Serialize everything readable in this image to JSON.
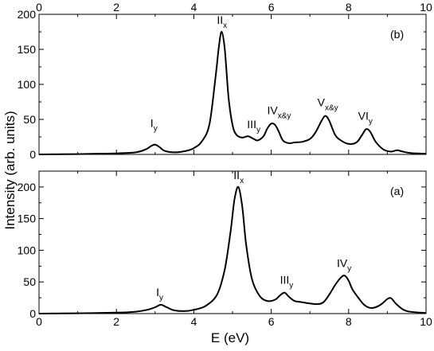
{
  "figure": {
    "xlabel": "E (eV)",
    "ylabel": "Intensity (arb. units)"
  },
  "chart_data": [
    {
      "type": "line",
      "panel_label": "(b)",
      "xlim": [
        0,
        10
      ],
      "ylim": [
        0,
        200
      ],
      "x_ticks": [
        0,
        2,
        4,
        6,
        8,
        10
      ],
      "x_tick_labels_top": [
        "0",
        "2",
        "4",
        "6",
        "8",
        "10"
      ],
      "y_ticks": [
        0,
        50,
        100,
        150,
        200
      ],
      "y_tick_labels": [
        "0",
        "50",
        "100",
        "150",
        "200"
      ],
      "grid": false,
      "series": [
        {
          "x": [
            0,
            1.0,
            2.0,
            2.5,
            2.75,
            2.9,
            3.0,
            3.1,
            3.25,
            3.5,
            3.8,
            4.0,
            4.2,
            4.4,
            4.55,
            4.65,
            4.72,
            4.8,
            4.9,
            5.0,
            5.1,
            5.25,
            5.4,
            5.55,
            5.65,
            5.8,
            5.9,
            6.0,
            6.1,
            6.2,
            6.3,
            6.45,
            6.6,
            6.8,
            7.0,
            7.15,
            7.3,
            7.4,
            7.5,
            7.65,
            7.8,
            8.0,
            8.2,
            8.35,
            8.45,
            8.55,
            8.7,
            8.9,
            9.1,
            9.25,
            9.4,
            9.6,
            10.0
          ],
          "y": [
            0,
            0.5,
            1.5,
            3,
            7,
            12,
            14,
            11,
            5,
            3,
            5,
            9,
            18,
            42,
            105,
            155,
            175,
            150,
            80,
            42,
            28,
            24,
            26,
            22,
            20,
            26,
            37,
            44,
            42,
            32,
            20,
            16,
            17,
            18,
            22,
            32,
            48,
            55,
            48,
            28,
            20,
            15,
            17,
            28,
            36,
            33,
            18,
            7,
            4,
            6,
            4,
            2,
            1
          ]
        }
      ],
      "annotations": [
        {
          "main": "I",
          "sub": "y",
          "x": 3.0,
          "y": 14
        },
        {
          "main": "II",
          "sub": "x",
          "x": 4.72,
          "y": 175
        },
        {
          "main": "III",
          "sub": "y",
          "x": 5.5,
          "y": 25
        },
        {
          "main": "IV",
          "sub": "x&y",
          "x": 6.1,
          "y": 44
        },
        {
          "main": "V",
          "sub": "x&y",
          "x": 7.4,
          "y": 55
        },
        {
          "main": "VI",
          "sub": "y",
          "x": 8.45,
          "y": 36
        }
      ]
    },
    {
      "type": "line",
      "panel_label": "(a)",
      "xlim": [
        0,
        10
      ],
      "ylim": [
        0,
        225
      ],
      "x_ticks": [
        0,
        2,
        4,
        6,
        8,
        10
      ],
      "x_tick_labels": [
        "0",
        "2",
        "4",
        "6",
        "8",
        "10"
      ],
      "y_ticks": [
        0,
        50,
        100,
        150,
        200
      ],
      "y_tick_labels": [
        "0",
        "50",
        "100",
        "150",
        "200"
      ],
      "grid": false,
      "series": [
        {
          "x": [
            0,
            1.0,
            2.0,
            2.5,
            2.8,
            3.0,
            3.15,
            3.3,
            3.5,
            3.8,
            4.0,
            4.3,
            4.6,
            4.8,
            4.95,
            5.05,
            5.15,
            5.25,
            5.35,
            5.5,
            5.7,
            5.9,
            6.1,
            6.25,
            6.35,
            6.45,
            6.6,
            6.8,
            7.0,
            7.2,
            7.35,
            7.5,
            7.65,
            7.8,
            7.9,
            8.0,
            8.1,
            8.25,
            8.4,
            8.55,
            8.7,
            8.85,
            9.0,
            9.1,
            9.25,
            9.5,
            10.0
          ],
          "y": [
            0,
            0.5,
            1.5,
            3,
            6,
            10,
            14,
            10,
            5,
            4,
            6,
            12,
            30,
            70,
            130,
            180,
            200,
            170,
            110,
            55,
            28,
            20,
            22,
            30,
            33,
            27,
            20,
            18,
            16,
            15,
            18,
            30,
            45,
            57,
            60,
            52,
            38,
            25,
            14,
            9,
            10,
            15,
            23,
            24,
            14,
            4,
            1
          ]
        }
      ],
      "annotations": [
        {
          "main": "I",
          "sub": "y",
          "x": 3.15,
          "y": 14
        },
        {
          "main": "II",
          "sub": "x",
          "x": 5.15,
          "y": 200
        },
        {
          "main": "III",
          "sub": "y",
          "x": 6.35,
          "y": 33
        },
        {
          "main": "IV",
          "sub": "y",
          "x": 7.9,
          "y": 60
        }
      ]
    }
  ]
}
